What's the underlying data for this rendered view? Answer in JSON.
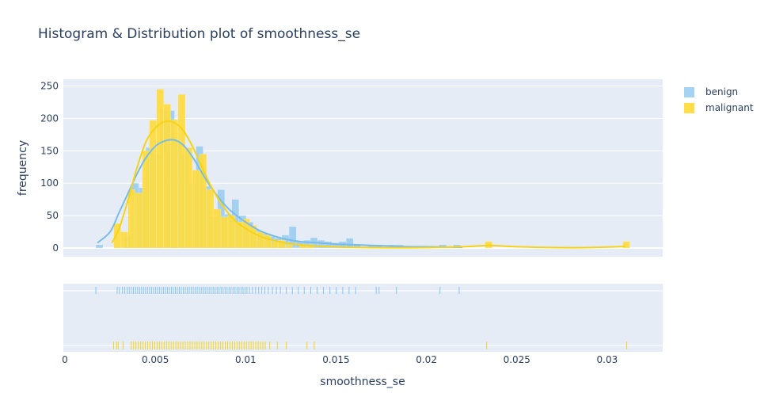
{
  "chart_data": {
    "type": "bar",
    "title": "Histogram & Distribution plot of smoothness_se",
    "xlabel": "smoothness_se",
    "ylabel": "frequency",
    "xlim": [
      0,
      0.0329
    ],
    "ylim": [
      -12,
      255
    ],
    "bin_width": 0.000396,
    "x_ticks": [
      "0",
      "0.005",
      "0.01",
      "0.015",
      "0.02",
      "0.025",
      "0.03"
    ],
    "y_ticks": [
      "0",
      "50",
      "100",
      "150",
      "200",
      "250"
    ],
    "legend_position": "right",
    "series": [
      {
        "name": "benign",
        "color": "#87c4f0",
        "opacity": 0.7,
        "bins": [
          {
            "x": 0.00171,
            "y": 5
          },
          {
            "x": 0.00329,
            "y": 18
          },
          {
            "x": 0.00369,
            "y": 100
          },
          {
            "x": 0.00408,
            "y": 93
          },
          {
            "x": 0.00448,
            "y": 155
          },
          {
            "x": 0.00488,
            "y": 145
          },
          {
            "x": 0.00527,
            "y": 213
          },
          {
            "x": 0.00567,
            "y": 212
          },
          {
            "x": 0.00606,
            "y": 165
          },
          {
            "x": 0.00646,
            "y": 145
          },
          {
            "x": 0.00686,
            "y": 100
          },
          {
            "x": 0.00725,
            "y": 157
          },
          {
            "x": 0.00765,
            "y": 95
          },
          {
            "x": 0.00804,
            "y": 48
          },
          {
            "x": 0.00844,
            "y": 90
          },
          {
            "x": 0.00883,
            "y": 52
          },
          {
            "x": 0.00923,
            "y": 75
          },
          {
            "x": 0.00963,
            "y": 50
          },
          {
            "x": 0.01002,
            "y": 40
          },
          {
            "x": 0.01042,
            "y": 28
          },
          {
            "x": 0.01081,
            "y": 22
          },
          {
            "x": 0.01121,
            "y": 18
          },
          {
            "x": 0.0116,
            "y": 15
          },
          {
            "x": 0.012,
            "y": 20
          },
          {
            "x": 0.0124,
            "y": 33
          },
          {
            "x": 0.01279,
            "y": 10
          },
          {
            "x": 0.01319,
            "y": 12
          },
          {
            "x": 0.01358,
            "y": 16
          },
          {
            "x": 0.01398,
            "y": 12
          },
          {
            "x": 0.01437,
            "y": 10
          },
          {
            "x": 0.01477,
            "y": 8
          },
          {
            "x": 0.01516,
            "y": 10
          },
          {
            "x": 0.01556,
            "y": 15
          },
          {
            "x": 0.01596,
            "y": 5
          },
          {
            "x": 0.01675,
            "y": 5
          },
          {
            "x": 0.01714,
            "y": 5
          },
          {
            "x": 0.01793,
            "y": 5
          },
          {
            "x": 0.01833,
            "y": 5
          },
          {
            "x": 0.0207,
            "y": 5
          },
          {
            "x": 0.02149,
            "y": 5
          }
        ],
        "kde": [
          [
            0.0018,
            8
          ],
          [
            0.0025,
            25
          ],
          [
            0.003,
            55
          ],
          [
            0.0035,
            85
          ],
          [
            0.004,
            115
          ],
          [
            0.0045,
            140
          ],
          [
            0.005,
            157
          ],
          [
            0.0055,
            165
          ],
          [
            0.006,
            167
          ],
          [
            0.0065,
            160
          ],
          [
            0.007,
            143
          ],
          [
            0.0075,
            120
          ],
          [
            0.008,
            97
          ],
          [
            0.0085,
            78
          ],
          [
            0.009,
            62
          ],
          [
            0.0095,
            50
          ],
          [
            0.01,
            40
          ],
          [
            0.0105,
            31
          ],
          [
            0.011,
            24
          ],
          [
            0.012,
            15
          ],
          [
            0.013,
            10
          ],
          [
            0.014,
            8
          ],
          [
            0.015,
            6
          ],
          [
            0.016,
            5
          ],
          [
            0.017,
            4
          ],
          [
            0.018,
            3
          ],
          [
            0.019,
            2
          ],
          [
            0.02,
            2
          ],
          [
            0.021,
            1.5
          ],
          [
            0.022,
            1
          ]
        ],
        "rug": [
          0.00171,
          0.00289,
          0.00302,
          0.00318,
          0.00331,
          0.00344,
          0.00356,
          0.00368,
          0.00379,
          0.00391,
          0.00402,
          0.00413,
          0.00424,
          0.00435,
          0.00446,
          0.00457,
          0.00468,
          0.00479,
          0.0049,
          0.00501,
          0.00512,
          0.00523,
          0.00534,
          0.00545,
          0.00556,
          0.00567,
          0.00578,
          0.00589,
          0.006,
          0.00611,
          0.00622,
          0.00633,
          0.00644,
          0.00655,
          0.00666,
          0.00677,
          0.00688,
          0.00699,
          0.0071,
          0.00721,
          0.00732,
          0.00743,
          0.00754,
          0.00765,
          0.00776,
          0.00787,
          0.00798,
          0.00809,
          0.0082,
          0.00831,
          0.00842,
          0.00853,
          0.00864,
          0.00875,
          0.00886,
          0.00897,
          0.00908,
          0.00919,
          0.0093,
          0.00941,
          0.00952,
          0.00963,
          0.00974,
          0.00985,
          0.00996,
          0.01007,
          0.01021,
          0.01038,
          0.01055,
          0.01072,
          0.01089,
          0.01106,
          0.01125,
          0.01148,
          0.0117,
          0.01192,
          0.01225,
          0.01258,
          0.01291,
          0.01324,
          0.0136,
          0.01395,
          0.0143,
          0.01466,
          0.01501,
          0.01537,
          0.01572,
          0.01608,
          0.01722,
          0.01738,
          0.01834,
          0.02075,
          0.02181
        ]
      },
      {
        "name": "malignant",
        "color": "#ffdb3b",
        "opacity": 0.9,
        "bins": [
          {
            "x": 0.0027,
            "y": 38
          },
          {
            "x": 0.00309,
            "y": 25
          },
          {
            "x": 0.00349,
            "y": 90
          },
          {
            "x": 0.00388,
            "y": 85
          },
          {
            "x": 0.00428,
            "y": 150
          },
          {
            "x": 0.00467,
            "y": 197
          },
          {
            "x": 0.00507,
            "y": 245
          },
          {
            "x": 0.00546,
            "y": 222
          },
          {
            "x": 0.00586,
            "y": 198
          },
          {
            "x": 0.00626,
            "y": 237
          },
          {
            "x": 0.00665,
            "y": 155
          },
          {
            "x": 0.00705,
            "y": 120
          },
          {
            "x": 0.00744,
            "y": 145
          },
          {
            "x": 0.00784,
            "y": 90
          },
          {
            "x": 0.00823,
            "y": 60
          },
          {
            "x": 0.00863,
            "y": 48
          },
          {
            "x": 0.00902,
            "y": 50
          },
          {
            "x": 0.00942,
            "y": 40
          },
          {
            "x": 0.00982,
            "y": 45
          },
          {
            "x": 0.01021,
            "y": 35
          },
          {
            "x": 0.01061,
            "y": 25
          },
          {
            "x": 0.011,
            "y": 20
          },
          {
            "x": 0.0114,
            "y": 10
          },
          {
            "x": 0.01179,
            "y": 12
          },
          {
            "x": 0.01219,
            "y": 5
          },
          {
            "x": 0.01298,
            "y": 5
          },
          {
            "x": 0.01338,
            "y": 5
          },
          {
            "x": 0.02324,
            "y": 10
          },
          {
            "x": 0.03086,
            "y": 10
          }
        ],
        "kde": [
          [
            0.0026,
            8
          ],
          [
            0.003,
            30
          ],
          [
            0.0035,
            75
          ],
          [
            0.004,
            125
          ],
          [
            0.0045,
            165
          ],
          [
            0.005,
            185
          ],
          [
            0.0055,
            195
          ],
          [
            0.006,
            194
          ],
          [
            0.0065,
            183
          ],
          [
            0.007,
            160
          ],
          [
            0.0075,
            130
          ],
          [
            0.008,
            100
          ],
          [
            0.0085,
            75
          ],
          [
            0.009,
            55
          ],
          [
            0.0095,
            40
          ],
          [
            0.01,
            30
          ],
          [
            0.0105,
            22
          ],
          [
            0.011,
            16
          ],
          [
            0.012,
            9
          ],
          [
            0.013,
            5
          ],
          [
            0.014,
            3
          ],
          [
            0.016,
            1
          ],
          [
            0.019,
            0.5
          ],
          [
            0.022,
            2
          ],
          [
            0.0235,
            4
          ],
          [
            0.025,
            2
          ],
          [
            0.028,
            0.5
          ],
          [
            0.03,
            1.5
          ],
          [
            0.031,
            2.5
          ]
        ],
        "rug": [
          0.00269,
          0.00286,
          0.00295,
          0.00322,
          0.00367,
          0.0038,
          0.00393,
          0.00406,
          0.00419,
          0.00432,
          0.00445,
          0.00458,
          0.00471,
          0.00484,
          0.00497,
          0.0051,
          0.00523,
          0.00536,
          0.00549,
          0.00562,
          0.00575,
          0.00588,
          0.00601,
          0.00614,
          0.00627,
          0.0064,
          0.00653,
          0.00666,
          0.00679,
          0.00692,
          0.00705,
          0.00718,
          0.00731,
          0.00744,
          0.00757,
          0.0077,
          0.00783,
          0.00796,
          0.00809,
          0.00822,
          0.00835,
          0.00848,
          0.00861,
          0.00874,
          0.00887,
          0.009,
          0.00913,
          0.00926,
          0.00939,
          0.00952,
          0.00965,
          0.00978,
          0.00991,
          0.01004,
          0.01017,
          0.0103,
          0.01043,
          0.01056,
          0.01069,
          0.01082,
          0.01095,
          0.01108,
          0.01133,
          0.01175,
          0.01225,
          0.01339,
          0.01379,
          0.02333,
          0.03108
        ]
      }
    ]
  }
}
